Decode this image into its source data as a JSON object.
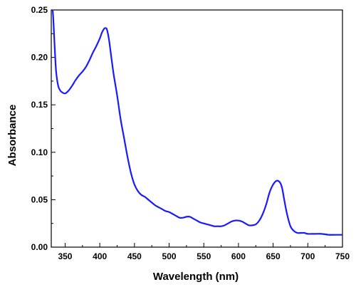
{
  "chart_data": {
    "type": "line",
    "title": "",
    "xlabel": "Wavelength (nm)",
    "ylabel": "Absorbance",
    "xlim": [
      330,
      750
    ],
    "ylim": [
      0.0,
      0.25
    ],
    "x_ticks": [
      350,
      400,
      450,
      500,
      550,
      600,
      650,
      700,
      750
    ],
    "x_tick_labels": [
      "350",
      "400",
      "450",
      "500",
      "550",
      "600",
      "650",
      "700",
      "750"
    ],
    "y_ticks": [
      0.0,
      0.05,
      0.1,
      0.15,
      0.2,
      0.25
    ],
    "y_tick_labels": [
      "0.00",
      "0.05",
      "0.10",
      "0.15",
      "0.20",
      "0.25"
    ],
    "grid": false,
    "legend": "none",
    "line_color": "#1a1aff",
    "series": [
      {
        "x": [
          332,
          333,
          335,
          337,
          340,
          343,
          346,
          350,
          355,
          360,
          365,
          370,
          375,
          380,
          385,
          390,
          395,
          400,
          403,
          406,
          408,
          410,
          412,
          414,
          417,
          420,
          425,
          430,
          435,
          440,
          445,
          450,
          455,
          460,
          465,
          470,
          475,
          480,
          485,
          490,
          495,
          500,
          505,
          510,
          515,
          520,
          525,
          530,
          535,
          540,
          545,
          550,
          555,
          560,
          565,
          570,
          575,
          580,
          585,
          590,
          595,
          600,
          605,
          610,
          615,
          620,
          625,
          630,
          635,
          640,
          645,
          650,
          655,
          660,
          663,
          666,
          670,
          675,
          680,
          685,
          690,
          695,
          700,
          710,
          720,
          730,
          740,
          750
        ],
        "y": [
          0.25,
          0.24,
          0.21,
          0.185,
          0.17,
          0.165,
          0.163,
          0.162,
          0.165,
          0.17,
          0.176,
          0.181,
          0.185,
          0.19,
          0.197,
          0.205,
          0.212,
          0.22,
          0.226,
          0.23,
          0.231,
          0.23,
          0.224,
          0.215,
          0.198,
          0.182,
          0.16,
          0.135,
          0.115,
          0.095,
          0.078,
          0.066,
          0.059,
          0.055,
          0.053,
          0.05,
          0.047,
          0.044,
          0.042,
          0.04,
          0.038,
          0.037,
          0.035,
          0.033,
          0.031,
          0.031,
          0.032,
          0.032,
          0.03,
          0.028,
          0.026,
          0.025,
          0.024,
          0.023,
          0.022,
          0.022,
          0.022,
          0.023,
          0.025,
          0.027,
          0.028,
          0.028,
          0.027,
          0.025,
          0.023,
          0.023,
          0.024,
          0.028,
          0.035,
          0.045,
          0.058,
          0.066,
          0.07,
          0.068,
          0.062,
          0.05,
          0.035,
          0.022,
          0.017,
          0.015,
          0.015,
          0.015,
          0.014,
          0.014,
          0.014,
          0.013,
          0.013,
          0.013
        ]
      }
    ]
  }
}
